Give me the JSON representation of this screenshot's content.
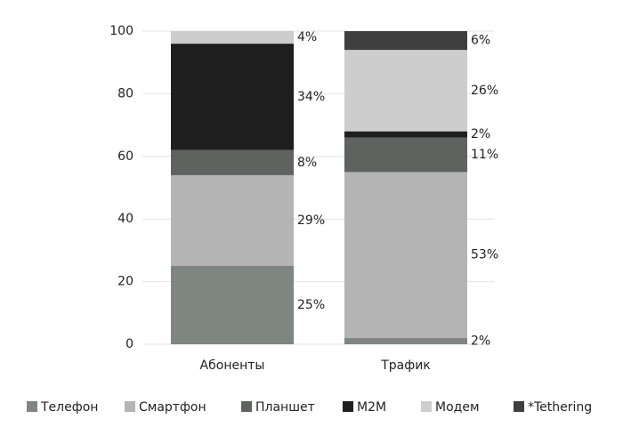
{
  "chart_data": {
    "type": "stacked_bar",
    "categories": [
      "Абоненты",
      "Трафик"
    ],
    "series": [
      {
        "name": "Телефон",
        "color": "#7f8581",
        "values": [
          25,
          2
        ],
        "value_labels": [
          "25%",
          "2%"
        ]
      },
      {
        "name": "Смартфон",
        "color": "#b4b4b4",
        "values": [
          29,
          53
        ],
        "value_labels": [
          "29%",
          "53%"
        ]
      },
      {
        "name": "Планшет",
        "color": "#5e6360",
        "values": [
          8,
          11
        ],
        "value_labels": [
          "8%",
          "11%"
        ]
      },
      {
        "name": "M2M",
        "color": "#1f1f1f",
        "values": [
          34,
          2
        ],
        "value_labels": [
          "34%",
          "2%"
        ]
      },
      {
        "name": "Модем",
        "color": "#cdcdcd",
        "values": [
          4,
          26
        ],
        "value_labels": [
          "4%",
          "26%"
        ]
      },
      {
        "name": "*Tethering",
        "color": "#3f3f3f",
        "values": [
          null,
          6
        ],
        "value_labels": [
          null,
          "6%"
        ]
      }
    ],
    "ylim": [
      0,
      100
    ],
    "yticks": [
      0,
      20,
      40,
      60,
      80,
      100
    ],
    "grid": true
  }
}
